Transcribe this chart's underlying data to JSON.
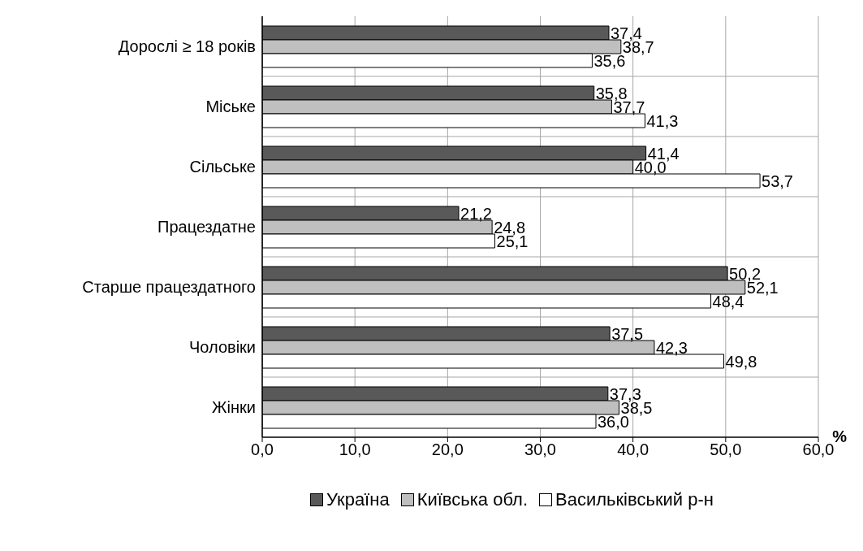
{
  "chart_data": {
    "type": "bar",
    "orientation": "horizontal",
    "xlabel": "%",
    "categories": [
      "Дорослі ≥ 18 років",
      "Міське",
      "Сільське",
      "Працездатне",
      "Старше працездатного",
      "Чоловіки",
      "Жінки"
    ],
    "series": [
      {
        "name": "Україна",
        "color": "#595959",
        "values": [
          37.4,
          35.8,
          41.4,
          21.2,
          50.2,
          37.5,
          37.3
        ],
        "value_labels": [
          "37,4",
          "35,8",
          "41,4",
          "21,2",
          "50,2",
          "37,5",
          "37,3"
        ]
      },
      {
        "name": "Київська обл.",
        "color": "#bfbfbf",
        "values": [
          38.7,
          37.7,
          40.0,
          24.8,
          52.1,
          42.3,
          38.5
        ],
        "value_labels": [
          "38,7",
          "37,7",
          "40,0",
          "24,8",
          "52,1",
          "42,3",
          "38,5"
        ]
      },
      {
        "name": "Васильківський р-н",
        "color": "#ffffff",
        "values": [
          35.6,
          41.3,
          53.7,
          25.1,
          48.4,
          49.8,
          36.0
        ],
        "value_labels": [
          "35,6",
          "41,3",
          "53,7",
          "25,1",
          "48,4",
          "49,8",
          "36,0"
        ]
      }
    ],
    "xlim": [
      0,
      60
    ],
    "xticks": [
      {
        "value": 0,
        "label": "0,0"
      },
      {
        "value": 10,
        "label": "10,0"
      },
      {
        "value": 20,
        "label": "20,0"
      },
      {
        "value": 30,
        "label": "30,0"
      },
      {
        "value": 40,
        "label": "40,0"
      },
      {
        "value": 50,
        "label": "50,0"
      },
      {
        "value": 60,
        "label": "60,0"
      }
    ],
    "grid": true,
    "legend": "bottom"
  }
}
